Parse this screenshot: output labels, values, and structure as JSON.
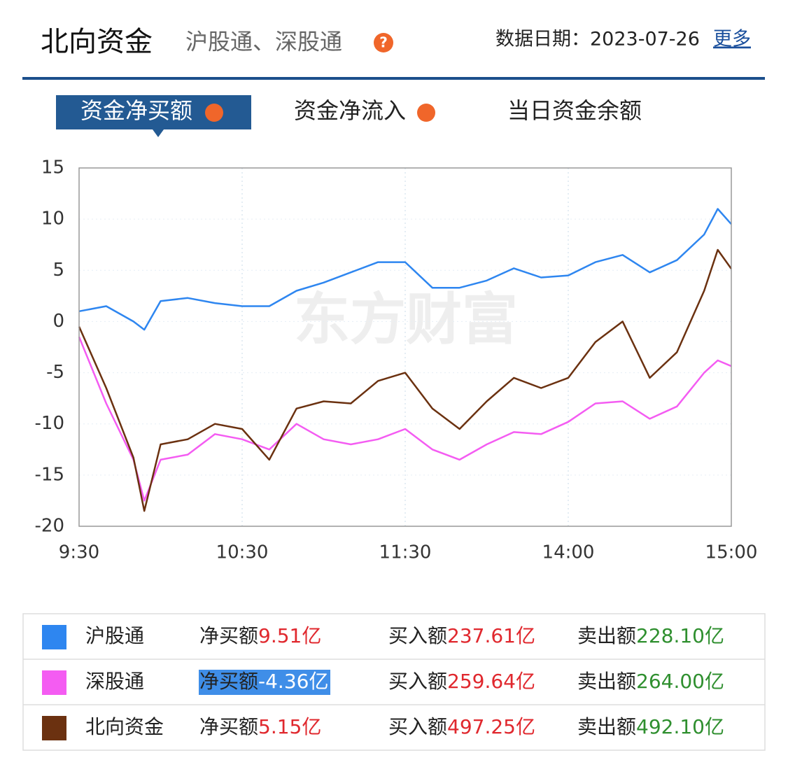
{
  "header": {
    "title": "北向资金",
    "subtitle": "沪股通、深股通",
    "date": "数据日期：2023-07-26",
    "more": "更多"
  },
  "tabs": [
    "资金净买额",
    "资金净流入",
    "当日资金余额"
  ],
  "chart_data": {
    "type": "line",
    "watermark": "东方财富",
    "x": [
      0,
      10,
      20,
      24,
      30,
      40,
      50,
      60,
      70,
      80,
      90,
      100,
      110,
      120,
      130,
      140,
      150,
      160,
      170,
      180,
      190,
      200,
      210,
      220,
      230,
      235,
      240
    ],
    "xlim": [
      0,
      240
    ],
    "xticks": [
      {
        "value": 0,
        "label": "9:30"
      },
      {
        "value": 60,
        "label": "10:30"
      },
      {
        "value": 120,
        "label": "11:30"
      },
      {
        "value": 180,
        "label": "14:00"
      },
      {
        "value": 240,
        "label": "15:00"
      }
    ],
    "ylim": [
      -20,
      15
    ],
    "yticks": [
      -20,
      -15,
      -10,
      -5,
      0,
      5,
      10,
      15
    ],
    "grid": true,
    "series": [
      {
        "name": "沪股通",
        "color": "#2e86f0",
        "values": [
          1,
          1.5,
          0,
          -0.8,
          2,
          2.3,
          1.8,
          1.5,
          1.5,
          3,
          3.8,
          4.8,
          5.8,
          5.8,
          3.3,
          3.3,
          4,
          5.2,
          4.3,
          4.5,
          5.8,
          6.5,
          4.8,
          6,
          8.5,
          11,
          9.51
        ]
      },
      {
        "name": "深股通",
        "color": "#f45cf2",
        "values": [
          -1.5,
          -8,
          -13.5,
          -17.5,
          -13.5,
          -13,
          -11,
          -11.5,
          -12.5,
          -10,
          -11.5,
          -12,
          -11.5,
          -10.5,
          -12.5,
          -13.5,
          -12,
          -10.8,
          -11,
          -9.8,
          -8,
          -7.8,
          -9.5,
          -8.3,
          -5,
          -3.8,
          -4.36
        ]
      },
      {
        "name": "北向资金",
        "color": "#6b3110",
        "values": [
          -0.5,
          -6.5,
          -13.3,
          -18.5,
          -12,
          -11.5,
          -10,
          -10.5,
          -13.5,
          -8.5,
          -7.8,
          -8,
          -5.8,
          -5,
          -8.5,
          -10.5,
          -7.8,
          -5.5,
          -6.5,
          -5.5,
          -2,
          0,
          -5.5,
          -3,
          3,
          7,
          5.15
        ]
      }
    ]
  },
  "summary": {
    "rows": [
      {
        "net_label": "净买额",
        "net": "9.51亿",
        "buy_label": "买入额",
        "buy": "237.61亿",
        "sell_label": "卖出额",
        "sell": "228.10亿"
      },
      {
        "net_label": "净买额",
        "net": "-4.36亿",
        "buy_label": "买入额",
        "buy": "259.64亿",
        "sell_label": "卖出额",
        "sell": "264.00亿"
      },
      {
        "net_label": "净买额",
        "net": "5.15亿",
        "buy_label": "买入额",
        "buy": "497.25亿",
        "sell_label": "卖出额",
        "sell": "492.10亿"
      }
    ]
  }
}
